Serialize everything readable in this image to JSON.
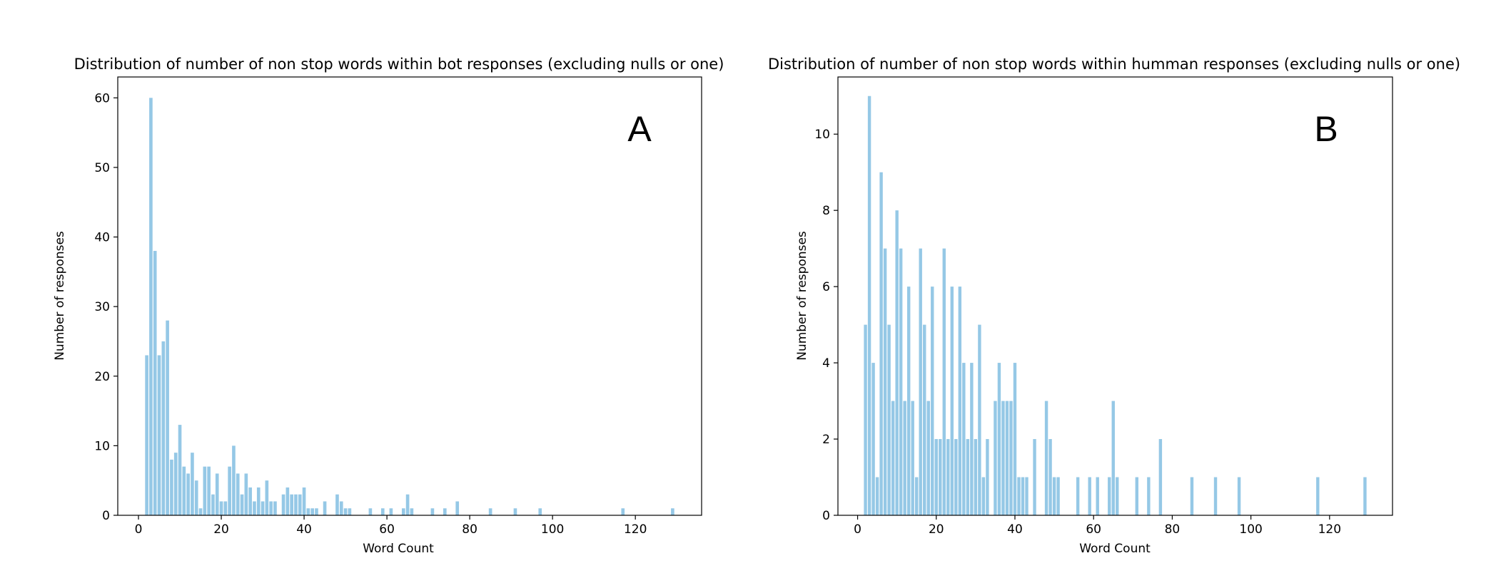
{
  "chart_data": [
    {
      "type": "bar",
      "title": "Distribution of number of non stop words within bot responses (excluding nulls or one)",
      "xlabel": "Word Count",
      "ylabel": "Number of responses",
      "panel_label": "A",
      "bar_color": "#95c8e6",
      "xlim": [
        -5,
        136
      ],
      "ylim": [
        0,
        63
      ],
      "xticks": [
        0,
        20,
        40,
        60,
        80,
        100,
        120
      ],
      "yticks": [
        0,
        10,
        20,
        30,
        40,
        50,
        60
      ],
      "grid": false,
      "legend": false,
      "x": [
        2,
        3,
        4,
        5,
        6,
        7,
        8,
        9,
        10,
        11,
        12,
        13,
        14,
        15,
        16,
        17,
        18,
        19,
        20,
        21,
        22,
        23,
        24,
        25,
        26,
        27,
        28,
        29,
        30,
        31,
        32,
        33,
        35,
        36,
        37,
        38,
        39,
        40,
        41,
        42,
        43,
        45,
        48,
        49,
        50,
        51,
        56,
        59,
        61,
        64,
        65,
        66,
        71,
        74,
        77,
        85,
        91,
        97,
        117,
        129
      ],
      "values": [
        23,
        60,
        38,
        23,
        25,
        28,
        8,
        9,
        13,
        7,
        6,
        9,
        5,
        1,
        7,
        7,
        3,
        6,
        2,
        2,
        7,
        10,
        6,
        3,
        6,
        4,
        2,
        4,
        2,
        5,
        2,
        2,
        3,
        4,
        3,
        3,
        3,
        4,
        1,
        1,
        1,
        2,
        3,
        2,
        1,
        1,
        1,
        1,
        1,
        1,
        3,
        1,
        1,
        1,
        2,
        1,
        1,
        1,
        1,
        1
      ]
    },
    {
      "type": "bar",
      "title": "Distribution of number of non stop words within humman responses (excluding nulls or one)",
      "xlabel": "Word Count",
      "ylabel": "Number of responses",
      "panel_label": "B",
      "bar_color": "#95c8e6",
      "xlim": [
        -5,
        136
      ],
      "ylim": [
        0,
        11.5
      ],
      "xticks": [
        0,
        20,
        40,
        60,
        80,
        100,
        120
      ],
      "yticks": [
        0,
        2,
        4,
        6,
        8,
        10
      ],
      "grid": false,
      "legend": false,
      "x": [
        2,
        3,
        4,
        5,
        6,
        7,
        8,
        9,
        10,
        11,
        12,
        13,
        14,
        15,
        16,
        17,
        18,
        19,
        20,
        21,
        22,
        23,
        24,
        25,
        26,
        27,
        28,
        29,
        30,
        31,
        32,
        33,
        35,
        36,
        37,
        38,
        39,
        40,
        41,
        42,
        43,
        45,
        48,
        49,
        50,
        51,
        56,
        59,
        61,
        64,
        65,
        66,
        71,
        74,
        77,
        85,
        91,
        97,
        117,
        129
      ],
      "values": [
        5,
        11,
        4,
        1,
        9,
        7,
        5,
        3,
        8,
        7,
        3,
        6,
        3,
        1,
        7,
        5,
        3,
        6,
        2,
        2,
        7,
        2,
        6,
        2,
        6,
        4,
        2,
        4,
        2,
        5,
        1,
        2,
        3,
        4,
        3,
        3,
        3,
        4,
        1,
        1,
        1,
        2,
        3,
        2,
        1,
        1,
        1,
        1,
        1,
        1,
        3,
        1,
        1,
        1,
        2,
        1,
        1,
        1,
        1,
        1
      ]
    }
  ]
}
